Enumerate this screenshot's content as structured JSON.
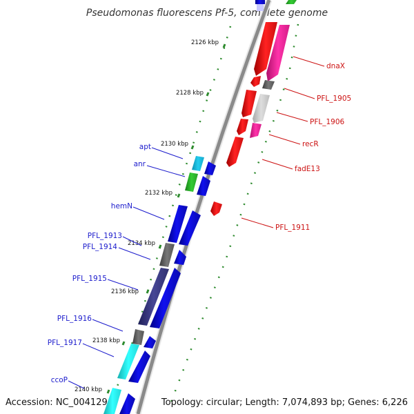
{
  "title": "Pseudomonas fluorescens Pf-5, complete genome",
  "footer": {
    "accession": "Accession: NC_004129",
    "topology": "Topology: circular; Length: 7,074,893 bp; Genes: 6,226"
  },
  "colors": {
    "backbone": "#8a8a8a",
    "tick": "#2e8b2e",
    "forward_label": "#1a1acc",
    "reverse_label": "#cc1111",
    "blue": "#1010ee",
    "cyan": "#22ccee",
    "green": "#33bb33",
    "gray": "#666666",
    "light_gray": "#c8c8c8",
    "navy": "#3a3a80",
    "red": "#ee1111",
    "pink": "#ee2299",
    "aqua": "#22eeee"
  },
  "kbp_labels": [
    "2126 kbp",
    "2128 kbp",
    "2130 kbp",
    "2132 kbp",
    "2134 kbp",
    "2136 kbp",
    "2138 kbp",
    "2140 kbp"
  ],
  "forward_genes": [
    "apt",
    "anr",
    "hemN",
    "PFL_1913",
    "PFL_1914",
    "PFL_1915",
    "PFL_1916",
    "PFL_1917",
    "ccoP"
  ],
  "reverse_genes": [
    "dnaX",
    "PFL_1905",
    "PFL_1906",
    "recR",
    "fadE13",
    "PFL_1911"
  ]
}
